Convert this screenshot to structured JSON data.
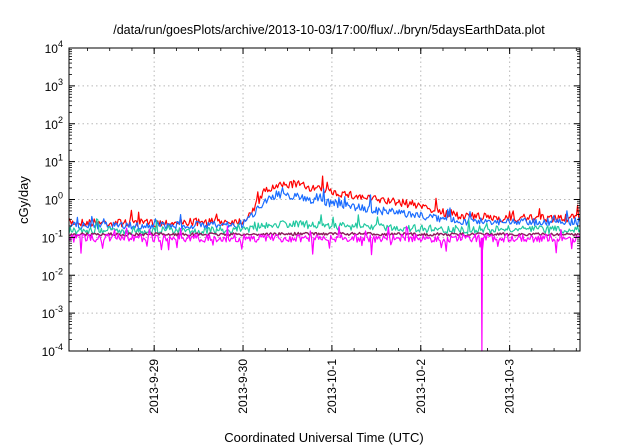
{
  "chart_data": {
    "type": "line",
    "title": "/data/run/goesPlots/archive/2013-10-03/17:00/flux/../bryn/5daysEarthData.plot",
    "xlabel": "Coordinated Universal Time (UTC)",
    "ylabel": "cGy/day",
    "yscale": "log",
    "ylim": [
      0.0001,
      10000
    ],
    "xlim": [
      "2013-09-28T01:00",
      "2013-10-03T19:00"
    ],
    "grid": true,
    "legend": "none",
    "y_ticks": [
      {
        "base": "10",
        "exp": "-4",
        "value": 0.0001
      },
      {
        "base": "10",
        "exp": "-3",
        "value": 0.001
      },
      {
        "base": "10",
        "exp": "-2",
        "value": 0.01
      },
      {
        "base": "10",
        "exp": "-1",
        "value": 0.1
      },
      {
        "base": "10",
        "exp": "0",
        "value": 1
      },
      {
        "base": "10",
        "exp": "1",
        "value": 10
      },
      {
        "base": "10",
        "exp": "2",
        "value": 100
      },
      {
        "base": "10",
        "exp": "3",
        "value": 1000
      },
      {
        "base": "10",
        "exp": "4",
        "value": 10000
      }
    ],
    "x_ticks": [
      {
        "label": "2013-9-29",
        "value": "2013-09-29T00:00"
      },
      {
        "label": "2013-9-30",
        "value": "2013-09-30T00:00"
      },
      {
        "label": "2013-10-1",
        "value": "2013-10-01T00:00"
      },
      {
        "label": "2013-10-2",
        "value": "2013-10-02T00:00"
      },
      {
        "label": "2013-10-3",
        "value": "2013-10-03T00:00"
      }
    ],
    "series": [
      {
        "color": "#ff0000",
        "x": [
          "2013-09-28T01:00",
          "2013-09-29T00:00",
          "2013-09-30T00:00",
          "2013-09-30T03:00",
          "2013-09-30T06:00",
          "2013-09-30T10:00",
          "2013-09-30T14:00",
          "2013-09-30T18:00",
          "2013-10-01T00:00",
          "2013-10-01T06:00",
          "2013-10-01T12:00",
          "2013-10-02T00:00",
          "2013-10-02T06:00",
          "2013-10-02T12:00",
          "2013-10-03T00:00",
          "2013-10-03T19:00"
        ],
        "y": [
          0.25,
          0.24,
          0.27,
          0.6,
          1.7,
          2.3,
          2.6,
          2.1,
          1.6,
          1.25,
          1.0,
          0.7,
          0.45,
          0.36,
          0.32,
          0.32
        ]
      },
      {
        "color": "#1a6cff",
        "x": [
          "2013-09-28T01:00",
          "2013-09-29T00:00",
          "2013-09-30T00:00",
          "2013-09-30T03:00",
          "2013-09-30T06:00",
          "2013-09-30T10:00",
          "2013-09-30T14:00",
          "2013-09-30T18:00",
          "2013-10-01T00:00",
          "2013-10-01T06:00",
          "2013-10-01T12:00",
          "2013-10-02T00:00",
          "2013-10-02T06:00",
          "2013-10-02T12:00",
          "2013-10-03T00:00",
          "2013-10-03T19:00"
        ],
        "y": [
          0.2,
          0.2,
          0.22,
          0.45,
          1.0,
          1.3,
          1.25,
          1.0,
          0.8,
          0.65,
          0.52,
          0.38,
          0.3,
          0.27,
          0.26,
          0.26
        ]
      },
      {
        "color": "#22c8a0",
        "x": [
          "2013-09-28T01:00",
          "2013-09-29T00:00",
          "2013-09-30T00:00",
          "2013-09-30T06:00",
          "2013-09-30T12:00",
          "2013-10-01T00:00",
          "2013-10-01T12:00",
          "2013-10-02T00:00",
          "2013-10-02T12:00",
          "2013-10-03T00:00",
          "2013-10-03T19:00"
        ],
        "y": [
          0.15,
          0.15,
          0.15,
          0.21,
          0.23,
          0.2,
          0.19,
          0.17,
          0.16,
          0.16,
          0.16
        ]
      },
      {
        "color": "#8b1a5a",
        "x": [
          "2013-09-28T01:00",
          "2013-09-29T00:00",
          "2013-09-30T00:00",
          "2013-10-01T00:00",
          "2013-10-02T00:00",
          "2013-10-03T00:00",
          "2013-10-03T19:00"
        ],
        "y": [
          0.12,
          0.12,
          0.12,
          0.125,
          0.12,
          0.12,
          0.12
        ]
      },
      {
        "color": "#ff00ff",
        "x": [
          "2013-09-28T01:00",
          "2013-09-29T00:00",
          "2013-09-30T00:00",
          "2013-10-01T00:00",
          "2013-10-02T00:00",
          "2013-10-02T16:20",
          "2013-10-02T16:30",
          "2013-10-02T16:40",
          "2013-10-03T00:00",
          "2013-10-03T19:00"
        ],
        "y": [
          0.095,
          0.095,
          0.095,
          0.095,
          0.095,
          0.095,
          0.0001,
          0.095,
          0.095,
          0.095
        ]
      }
    ]
  }
}
